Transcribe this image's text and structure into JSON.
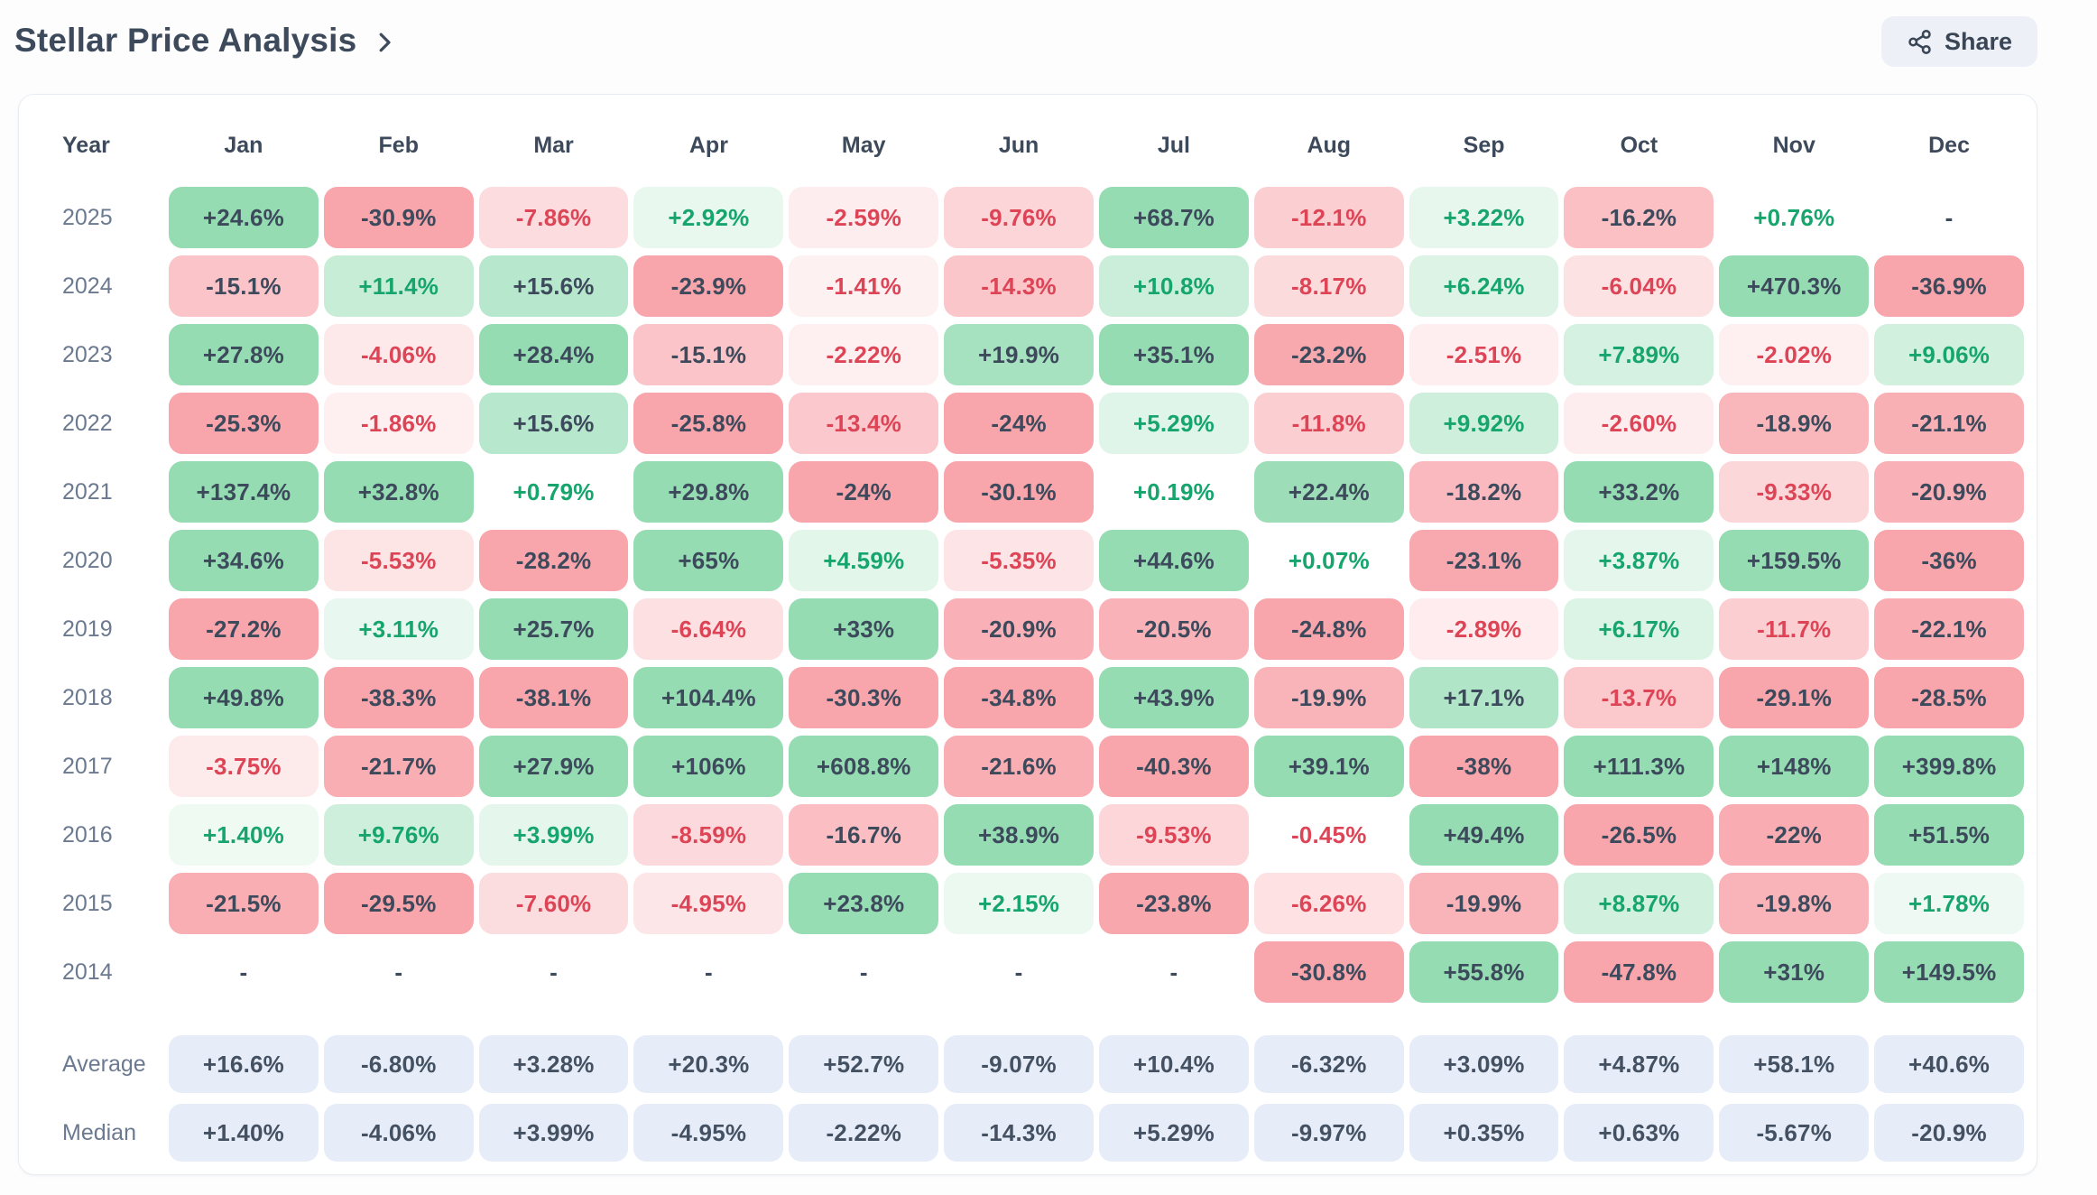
{
  "header": {
    "title": "Stellar Price Analysis",
    "share_label": "Share"
  },
  "table": {
    "columns": [
      "Year",
      "Jan",
      "Feb",
      "Mar",
      "Apr",
      "May",
      "Jun",
      "Jul",
      "Aug",
      "Sep",
      "Oct",
      "Nov",
      "Dec"
    ],
    "rows": [
      {
        "year": "2025",
        "values": [
          "+24.6%",
          "-30.9%",
          "-7.86%",
          "+2.92%",
          "-2.59%",
          "-9.76%",
          "+68.7%",
          "-12.1%",
          "+3.22%",
          "-16.2%",
          "+0.76%",
          "-"
        ]
      },
      {
        "year": "2024",
        "values": [
          "-15.1%",
          "+11.4%",
          "+15.6%",
          "-23.9%",
          "-1.41%",
          "-14.3%",
          "+10.8%",
          "-8.17%",
          "+6.24%",
          "-6.04%",
          "+470.3%",
          "-36.9%"
        ]
      },
      {
        "year": "2023",
        "values": [
          "+27.8%",
          "-4.06%",
          "+28.4%",
          "-15.1%",
          "-2.22%",
          "+19.9%",
          "+35.1%",
          "-23.2%",
          "-2.51%",
          "+7.89%",
          "-2.02%",
          "+9.06%"
        ]
      },
      {
        "year": "2022",
        "values": [
          "-25.3%",
          "-1.86%",
          "+15.6%",
          "-25.8%",
          "-13.4%",
          "-24%",
          "+5.29%",
          "-11.8%",
          "+9.92%",
          "-2.60%",
          "-18.9%",
          "-21.1%"
        ]
      },
      {
        "year": "2021",
        "values": [
          "+137.4%",
          "+32.8%",
          "+0.79%",
          "+29.8%",
          "-24%",
          "-30.1%",
          "+0.19%",
          "+22.4%",
          "-18.2%",
          "+33.2%",
          "-9.33%",
          "-20.9%"
        ]
      },
      {
        "year": "2020",
        "values": [
          "+34.6%",
          "-5.53%",
          "-28.2%",
          "+65%",
          "+4.59%",
          "-5.35%",
          "+44.6%",
          "+0.07%",
          "-23.1%",
          "+3.87%",
          "+159.5%",
          "-36%"
        ]
      },
      {
        "year": "2019",
        "values": [
          "-27.2%",
          "+3.11%",
          "+25.7%",
          "-6.64%",
          "+33%",
          "-20.9%",
          "-20.5%",
          "-24.8%",
          "-2.89%",
          "+6.17%",
          "-11.7%",
          "-22.1%"
        ]
      },
      {
        "year": "2018",
        "values": [
          "+49.8%",
          "-38.3%",
          "-38.1%",
          "+104.4%",
          "-30.3%",
          "-34.8%",
          "+43.9%",
          "-19.9%",
          "+17.1%",
          "-13.7%",
          "-29.1%",
          "-28.5%"
        ]
      },
      {
        "year": "2017",
        "values": [
          "-3.75%",
          "-21.7%",
          "+27.9%",
          "+106%",
          "+608.8%",
          "-21.6%",
          "-40.3%",
          "+39.1%",
          "-38%",
          "+111.3%",
          "+148%",
          "+399.8%"
        ]
      },
      {
        "year": "2016",
        "values": [
          "+1.40%",
          "+9.76%",
          "+3.99%",
          "-8.59%",
          "-16.7%",
          "+38.9%",
          "-9.53%",
          "-0.45%",
          "+49.4%",
          "-26.5%",
          "-22%",
          "+51.5%"
        ]
      },
      {
        "year": "2015",
        "values": [
          "-21.5%",
          "-29.5%",
          "-7.60%",
          "-4.95%",
          "+23.8%",
          "+2.15%",
          "-23.8%",
          "-6.26%",
          "-19.9%",
          "+8.87%",
          "-19.8%",
          "+1.78%"
        ]
      },
      {
        "year": "2014",
        "values": [
          "-",
          "-",
          "-",
          "-",
          "-",
          "-",
          "-",
          "-30.8%",
          "+55.8%",
          "-47.8%",
          "+31%",
          "+149.5%"
        ]
      }
    ],
    "summary_rows": [
      {
        "label": "Average",
        "values": [
          "+16.6%",
          "-6.80%",
          "+3.28%",
          "+20.3%",
          "+52.7%",
          "-9.07%",
          "+10.4%",
          "-6.32%",
          "+3.09%",
          "+4.87%",
          "+58.1%",
          "+40.6%"
        ]
      },
      {
        "label": "Median",
        "values": [
          "+1.40%",
          "-4.06%",
          "+3.99%",
          "-4.95%",
          "-2.22%",
          "-14.3%",
          "+5.29%",
          "-9.97%",
          "+0.35%",
          "+0.63%",
          "-5.67%",
          "-20.9%"
        ]
      }
    ]
  },
  "colors": {
    "positive_bg": "#95dcb3",
    "negative_bg": "#f8a5ab",
    "positive_text": "#16a56d",
    "negative_text": "#dd4557",
    "strong_text": "#3d4a5c",
    "summary_bg": "#e7edf8",
    "summary_text": "#445163",
    "year_label": "#6b7a90"
  }
}
